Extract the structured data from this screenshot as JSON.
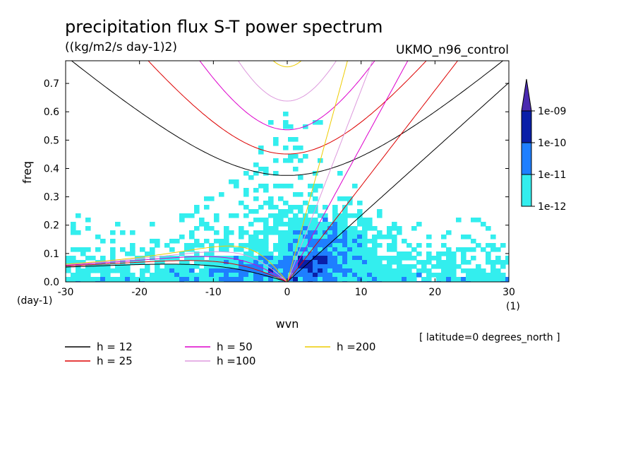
{
  "chart_data": {
    "type": "heatmap",
    "title": "precipitation flux S-T power spectrum",
    "subtitle": "((kg/m2/s day-1)2)",
    "source_label": "UKMO_n96_control",
    "xlabel": "wvn",
    "ylabel": "freq",
    "x_unit": "(1)",
    "y_unit": "(day-1)",
    "xlim": [
      -30,
      30
    ],
    "ylim": [
      0,
      0.78
    ],
    "x_ticks": [
      -30,
      -20,
      -10,
      0,
      10,
      20,
      30
    ],
    "x_tick_labels": [
      "-30",
      "-20",
      "-10",
      "0",
      "10",
      "20",
      "30"
    ],
    "y_ticks": [
      0,
      0.1,
      0.2,
      0.3,
      0.4,
      0.5,
      0.6,
      0.7
    ],
    "y_tick_labels": [
      "0.0",
      "0.1",
      "0.2",
      "0.3",
      "0.4",
      "0.5",
      "0.6",
      "0.7"
    ],
    "footnote": "[ latitude=0 degrees_north ]",
    "colorbar": {
      "levels": [
        "1e-12",
        "1e-11",
        "1e-10",
        "1e-09"
      ],
      "colors": [
        "#33eeee",
        "#1e7fff",
        "#0a1fa8",
        "#4a2ab0"
      ],
      "extend": "max"
    },
    "contour_levels_log10": [
      -12,
      -11,
      -10,
      -9
    ],
    "field_description_note": "",
    "dispersion_curves": [
      {
        "label": "h = 12",
        "h": 12,
        "color": "#000000"
      },
      {
        "label": "h = 25",
        "h": 25,
        "color": "#dd0000"
      },
      {
        "label": "h = 50",
        "h": 50,
        "color": "#dd00cc"
      },
      {
        "label": "h =100",
        "h": 100,
        "color": "#dd99dd"
      },
      {
        "label": "h =200",
        "h": 200,
        "color": "#eecc00"
      }
    ],
    "grid": false,
    "legend_position": "bottom-left"
  }
}
